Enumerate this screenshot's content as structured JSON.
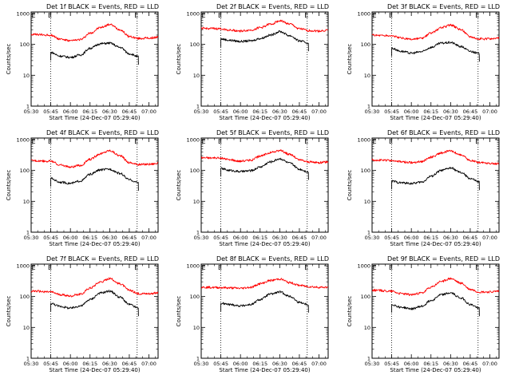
{
  "chart_data": [
    {
      "type": "line",
      "title": "Det 1f BLACK = Events, RED = LLD",
      "xlabel": "Start Time (24-Dec-07 05:29:40)",
      "ylabel": "Counts/sec",
      "x_ticks": [
        "05:30",
        "05:45",
        "06:00",
        "06:15",
        "06:30",
        "06:45",
        "07:00"
      ],
      "y_ticks": [
        "1",
        "10",
        "100",
        "1000"
      ],
      "ylim": [
        1,
        1000
      ],
      "y_scale": "log",
      "xlim": [
        "05:30",
        "07:07"
      ],
      "event_markers": [
        {
          "time": "05:45",
          "letter": "E"
        },
        {
          "time": "06:51",
          "letter": "E"
        }
      ],
      "series": [
        {
          "name": "BLACK = Events",
          "color": "#000000",
          "x": [
            "05:45",
            "05:52",
            "06:00",
            "06:08",
            "06:15",
            "06:23",
            "06:30",
            "06:38",
            "06:45",
            "06:52"
          ],
          "y": [
            55,
            42,
            38,
            46,
            75,
            105,
            110,
            80,
            50,
            40
          ]
        },
        {
          "name": "RED = LLD",
          "color": "#ff0000",
          "x": [
            "05:30",
            "05:45",
            "05:52",
            "06:00",
            "06:08",
            "06:15",
            "06:23",
            "06:30",
            "06:38",
            "06:45",
            "06:52",
            "07:00",
            "07:07"
          ],
          "y": [
            210,
            200,
            150,
            130,
            145,
            230,
            350,
            440,
            300,
            180,
            155,
            160,
            170
          ]
        }
      ]
    },
    {
      "type": "line",
      "title": "Det 2f BLACK = Events, RED = LLD",
      "xlabel": "Start Time (24-Dec-07 05:29:40)",
      "ylabel": "Counts/sec",
      "x_ticks": [
        "05:30",
        "05:45",
        "06:00",
        "06:15",
        "06:30",
        "06:45",
        "07:00"
      ],
      "y_ticks": [
        "1",
        "10",
        "100",
        "1000"
      ],
      "ylim": [
        1,
        1000
      ],
      "y_scale": "log",
      "xlim": [
        "05:30",
        "07:07"
      ],
      "event_markers": [
        {
          "time": "05:45",
          "letter": "E"
        },
        {
          "time": "06:51",
          "letter": "E"
        }
      ],
      "series": [
        {
          "name": "BLACK = Events",
          "color": "#000000",
          "x": [
            "05:45",
            "05:52",
            "06:00",
            "06:08",
            "06:15",
            "06:23",
            "06:30",
            "06:38",
            "06:45",
            "06:52"
          ],
          "y": [
            150,
            135,
            125,
            130,
            155,
            200,
            260,
            190,
            130,
            110
          ]
        },
        {
          "name": "RED = LLD",
          "color": "#ff0000",
          "x": [
            "05:30",
            "05:45",
            "05:52",
            "06:00",
            "06:08",
            "06:15",
            "06:23",
            "06:30",
            "06:38",
            "06:45",
            "06:52",
            "07:00",
            "07:07"
          ],
          "y": [
            330,
            320,
            290,
            270,
            290,
            350,
            450,
            580,
            450,
            320,
            280,
            270,
            290
          ]
        }
      ]
    },
    {
      "type": "line",
      "title": "Det 3f BLACK = Events, RED = LLD",
      "xlabel": "Start Time (24-Dec-07 05:29:40)",
      "ylabel": "Counts/sec",
      "x_ticks": [
        "05:30",
        "05:45",
        "06:00",
        "06:15",
        "06:30",
        "06:45",
        "07:00"
      ],
      "y_ticks": [
        "1",
        "10",
        "100",
        "1000"
      ],
      "ylim": [
        1,
        1000
      ],
      "y_scale": "log",
      "xlim": [
        "05:30",
        "07:07"
      ],
      "event_markers": [
        {
          "time": "05:45",
          "letter": "E"
        },
        {
          "time": "06:51",
          "letter": "E"
        }
      ],
      "series": [
        {
          "name": "BLACK = Events",
          "color": "#000000",
          "x": [
            "05:45",
            "05:52",
            "06:00",
            "06:08",
            "06:15",
            "06:23",
            "06:30",
            "06:38",
            "06:45",
            "06:52"
          ],
          "y": [
            75,
            60,
            52,
            58,
            80,
            110,
            115,
            85,
            60,
            50
          ]
        },
        {
          "name": "RED = LLD",
          "color": "#ff0000",
          "x": [
            "05:30",
            "05:45",
            "05:52",
            "06:00",
            "06:08",
            "06:15",
            "06:23",
            "06:30",
            "06:38",
            "06:45",
            "06:52",
            "07:00",
            "07:07"
          ],
          "y": [
            200,
            190,
            160,
            145,
            155,
            230,
            350,
            420,
            300,
            180,
            150,
            150,
            160
          ]
        }
      ]
    },
    {
      "type": "line",
      "title": "Det 4f BLACK = Events, RED = LLD",
      "xlabel": "Start Time (24-Dec-07 05:29:40)",
      "ylabel": "Counts/sec",
      "x_ticks": [
        "05:30",
        "05:45",
        "06:00",
        "06:15",
        "06:30",
        "06:45",
        "07:00"
      ],
      "y_ticks": [
        "1",
        "10",
        "100",
        "1000"
      ],
      "ylim": [
        1,
        1000
      ],
      "y_scale": "log",
      "xlim": [
        "05:30",
        "07:07"
      ],
      "event_markers": [
        {
          "time": "05:45",
          "letter": "E"
        },
        {
          "time": "06:51",
          "letter": "E"
        }
      ],
      "series": [
        {
          "name": "BLACK = Events",
          "color": "#000000",
          "x": [
            "05:45",
            "05:52",
            "06:00",
            "06:08",
            "06:15",
            "06:23",
            "06:30",
            "06:38",
            "06:45",
            "06:52"
          ],
          "y": [
            55,
            42,
            38,
            46,
            75,
            105,
            110,
            80,
            50,
            40
          ]
        },
        {
          "name": "RED = LLD",
          "color": "#ff0000",
          "x": [
            "05:30",
            "05:45",
            "05:52",
            "06:00",
            "06:08",
            "06:15",
            "06:23",
            "06:30",
            "06:38",
            "06:45",
            "06:52",
            "07:00",
            "07:07"
          ],
          "y": [
            210,
            200,
            150,
            130,
            145,
            230,
            350,
            440,
            300,
            180,
            155,
            160,
            170
          ]
        }
      ]
    },
    {
      "type": "line",
      "title": "Det 5f BLACK = Events, RED = LLD",
      "xlabel": "Start Time (24-Dec-07 05:29:40)",
      "ylabel": "Counts/sec",
      "x_ticks": [
        "05:30",
        "05:45",
        "06:00",
        "06:15",
        "06:30",
        "06:45",
        "07:00"
      ],
      "y_ticks": [
        "1",
        "10",
        "100",
        "1000"
      ],
      "ylim": [
        1,
        1000
      ],
      "y_scale": "log",
      "xlim": [
        "05:30",
        "07:07"
      ],
      "event_markers": [
        {
          "time": "05:45",
          "letter": "E"
        },
        {
          "time": "06:51",
          "letter": "E"
        }
      ],
      "series": [
        {
          "name": "BLACK = Events",
          "color": "#000000",
          "x": [
            "05:45",
            "05:52",
            "06:00",
            "06:08",
            "06:15",
            "06:23",
            "06:30",
            "06:38",
            "06:45",
            "06:52"
          ],
          "y": [
            115,
            100,
            92,
            98,
            130,
            190,
            240,
            170,
            110,
            90
          ]
        },
        {
          "name": "RED = LLD",
          "color": "#ff0000",
          "x": [
            "05:30",
            "05:45",
            "05:52",
            "06:00",
            "06:08",
            "06:15",
            "06:23",
            "06:30",
            "06:38",
            "06:45",
            "06:52",
            "07:00",
            "07:07"
          ],
          "y": [
            260,
            250,
            220,
            200,
            215,
            290,
            380,
            440,
            330,
            220,
            190,
            180,
            190
          ]
        }
      ]
    },
    {
      "type": "line",
      "title": "Det 6f BLACK = Events, RED = LLD",
      "xlabel": "Start Time (24-Dec-07 05:29:40)",
      "ylabel": "Counts/sec",
      "x_ticks": [
        "05:30",
        "05:45",
        "06:00",
        "06:15",
        "06:30",
        "06:45",
        "07:00"
      ],
      "y_ticks": [
        "1",
        "10",
        "100",
        "1000"
      ],
      "ylim": [
        1,
        1000
      ],
      "y_scale": "log",
      "xlim": [
        "05:30",
        "07:07"
      ],
      "event_markers": [
        {
          "time": "05:45",
          "letter": "E"
        },
        {
          "time": "06:51",
          "letter": "E"
        }
      ],
      "series": [
        {
          "name": "BLACK = Events",
          "color": "#000000",
          "x": [
            "05:45",
            "05:52",
            "06:00",
            "06:08",
            "06:15",
            "06:23",
            "06:30",
            "06:38",
            "06:45",
            "06:52"
          ],
          "y": [
            45,
            40,
            38,
            42,
            65,
            100,
            120,
            85,
            55,
            42
          ]
        },
        {
          "name": "RED = LLD",
          "color": "#ff0000",
          "x": [
            "05:30",
            "05:45",
            "05:52",
            "06:00",
            "06:08",
            "06:15",
            "06:23",
            "06:30",
            "06:38",
            "06:45",
            "06:52",
            "07:00",
            "07:07"
          ],
          "y": [
            220,
            210,
            190,
            180,
            195,
            270,
            370,
            430,
            320,
            210,
            185,
            170,
            165
          ]
        }
      ]
    },
    {
      "type": "line",
      "title": "Det 7f BLACK = Events, RED = LLD",
      "xlabel": "Start Time (24-Dec-07 05:29:40)",
      "ylabel": "Counts/sec",
      "x_ticks": [
        "05:30",
        "05:45",
        "06:00",
        "06:15",
        "06:30",
        "06:45",
        "07:00"
      ],
      "y_ticks": [
        "1",
        "10",
        "100",
        "1000"
      ],
      "ylim": [
        1,
        1000
      ],
      "y_scale": "log",
      "xlim": [
        "05:30",
        "07:07"
      ],
      "event_markers": [
        {
          "time": "05:45",
          "letter": "E"
        },
        {
          "time": "06:51",
          "letter": "E"
        }
      ],
      "series": [
        {
          "name": "BLACK = Events",
          "color": "#000000",
          "x": [
            "05:45",
            "05:52",
            "06:00",
            "06:08",
            "06:15",
            "06:23",
            "06:30",
            "06:38",
            "06:45",
            "06:52"
          ],
          "y": [
            60,
            48,
            42,
            50,
            80,
            130,
            150,
            95,
            55,
            42
          ]
        },
        {
          "name": "RED = LLD",
          "color": "#ff0000",
          "x": [
            "05:30",
            "05:45",
            "05:52",
            "06:00",
            "06:08",
            "06:15",
            "06:23",
            "06:30",
            "06:38",
            "06:45",
            "06:52",
            "07:00",
            "07:07"
          ],
          "y": [
            150,
            140,
            115,
            105,
            120,
            190,
            300,
            380,
            260,
            160,
            125,
            125,
            130
          ]
        }
      ]
    },
    {
      "type": "line",
      "title": "Det 8f BLACK = Events, RED = LLD",
      "xlabel": "Start Time (24-Dec-07 05:29:40)",
      "ylabel": "Counts/sec",
      "x_ticks": [
        "05:30",
        "05:45",
        "06:00",
        "06:15",
        "06:30",
        "06:45",
        "07:00"
      ],
      "y_ticks": [
        "1",
        "10",
        "100",
        "1000"
      ],
      "ylim": [
        1,
        1000
      ],
      "y_scale": "log",
      "xlim": [
        "05:30",
        "07:07"
      ],
      "event_markers": [
        {
          "time": "05:45",
          "letter": "E"
        },
        {
          "time": "06:51",
          "letter": "E"
        }
      ],
      "series": [
        {
          "name": "BLACK = Events",
          "color": "#000000",
          "x": [
            "05:45",
            "05:52",
            "06:00",
            "06:08",
            "06:15",
            "06:23",
            "06:30",
            "06:38",
            "06:45",
            "06:52"
          ],
          "y": [
            60,
            55,
            50,
            55,
            80,
            120,
            140,
            100,
            65,
            55
          ]
        },
        {
          "name": "RED = LLD",
          "color": "#ff0000",
          "x": [
            "05:30",
            "05:45",
            "05:52",
            "06:00",
            "06:08",
            "06:15",
            "06:23",
            "06:30",
            "06:38",
            "06:45",
            "06:52",
            "07:00",
            "07:07"
          ],
          "y": [
            200,
            195,
            190,
            185,
            200,
            260,
            330,
            370,
            280,
            230,
            210,
            200,
            200
          ]
        }
      ]
    },
    {
      "type": "line",
      "title": "Det 9f BLACK = Events, RED = LLD",
      "xlabel": "Start Time (24-Dec-07 05:29:40)",
      "ylabel": "Counts/sec",
      "x_ticks": [
        "05:30",
        "05:45",
        "06:00",
        "06:15",
        "06:30",
        "06:45",
        "07:00"
      ],
      "y_ticks": [
        "1",
        "10",
        "100",
        "1000"
      ],
      "ylim": [
        1,
        1000
      ],
      "y_scale": "log",
      "xlim": [
        "05:30",
        "07:07"
      ],
      "event_markers": [
        {
          "time": "05:45",
          "letter": "E"
        },
        {
          "time": "06:51",
          "letter": "E"
        }
      ],
      "series": [
        {
          "name": "BLACK = Events",
          "color": "#000000",
          "x": [
            "05:45",
            "05:52",
            "06:00",
            "06:08",
            "06:15",
            "06:23",
            "06:30",
            "06:38",
            "06:45",
            "06:52"
          ],
          "y": [
            55,
            45,
            40,
            48,
            75,
            115,
            130,
            90,
            55,
            42
          ]
        },
        {
          "name": "RED = LLD",
          "color": "#ff0000",
          "x": [
            "05:30",
            "05:45",
            "05:52",
            "06:00",
            "06:08",
            "06:15",
            "06:23",
            "06:30",
            "06:38",
            "06:45",
            "06:52",
            "07:00",
            "07:07"
          ],
          "y": [
            160,
            150,
            125,
            115,
            130,
            200,
            310,
            380,
            270,
            170,
            140,
            140,
            150
          ]
        }
      ]
    }
  ]
}
